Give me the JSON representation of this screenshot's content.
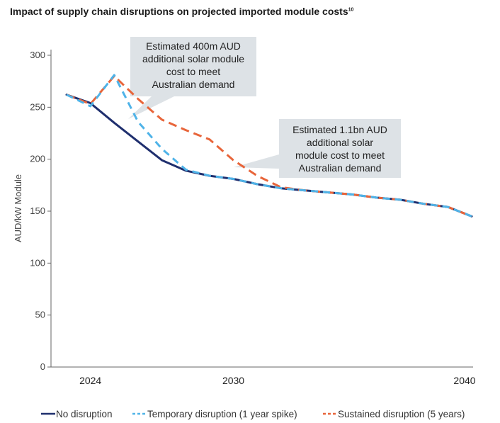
{
  "chart_data": {
    "type": "line",
    "title": "Impact of supply chain disruptions on projected imported module costs",
    "title_superscript": "10",
    "ylabel": "AUD/kW Module",
    "xlabel": "",
    "ylim": [
      0,
      300
    ],
    "xlim": [
      2023,
      2040
    ],
    "y_ticks": [
      0,
      50,
      100,
      150,
      200,
      250,
      300
    ],
    "x_ticks": [
      2024,
      2030,
      2040
    ],
    "grid": false,
    "legend_position": "bottom",
    "series": [
      {
        "name": "No disruption",
        "color": "#1f2f6e",
        "dash": "solid",
        "x": [
          2023,
          2024,
          2025,
          2026,
          2027,
          2028,
          2029,
          2030,
          2031,
          2032,
          2033,
          2034,
          2035,
          2036,
          2037,
          2038,
          2039,
          2040
        ],
        "y": [
          262,
          254,
          235,
          217,
          199,
          189,
          184,
          181,
          176,
          172,
          170,
          168,
          166,
          163,
          161,
          157,
          154,
          145
        ]
      },
      {
        "name": "Temporary disruption (1 year spike)",
        "color": "#4fb3e8",
        "dash": "dashed",
        "x": [
          2023,
          2024,
          2025,
          2026,
          2027,
          2028,
          2029,
          2030,
          2031,
          2032,
          2033,
          2034,
          2035,
          2036,
          2037,
          2038,
          2039,
          2040
        ],
        "y": [
          262,
          251,
          281,
          236,
          210,
          190,
          184,
          181,
          176,
          172,
          170,
          168,
          166,
          163,
          161,
          157,
          154,
          145
        ]
      },
      {
        "name": "Sustained disruption (5 years)",
        "color": "#e8653a",
        "dash": "dashed",
        "x": [
          2023,
          2024,
          2025,
          2026,
          2027,
          2028,
          2029,
          2030,
          2031,
          2032,
          2033,
          2034,
          2035,
          2036,
          2037,
          2038,
          2039,
          2040
        ],
        "y": [
          262,
          253,
          280,
          258,
          238,
          228,
          219,
          199,
          184,
          173,
          170,
          168,
          166,
          163,
          161,
          157,
          154,
          145
        ]
      }
    ],
    "annotations": [
      {
        "lines": [
          "Estimated 400m AUD",
          "additional solar module",
          "cost to meet",
          "Australian demand"
        ]
      },
      {
        "lines": [
          "Estimated 1.1bn AUD",
          "additional solar",
          "module cost to meet",
          "Australian demand"
        ]
      }
    ]
  }
}
